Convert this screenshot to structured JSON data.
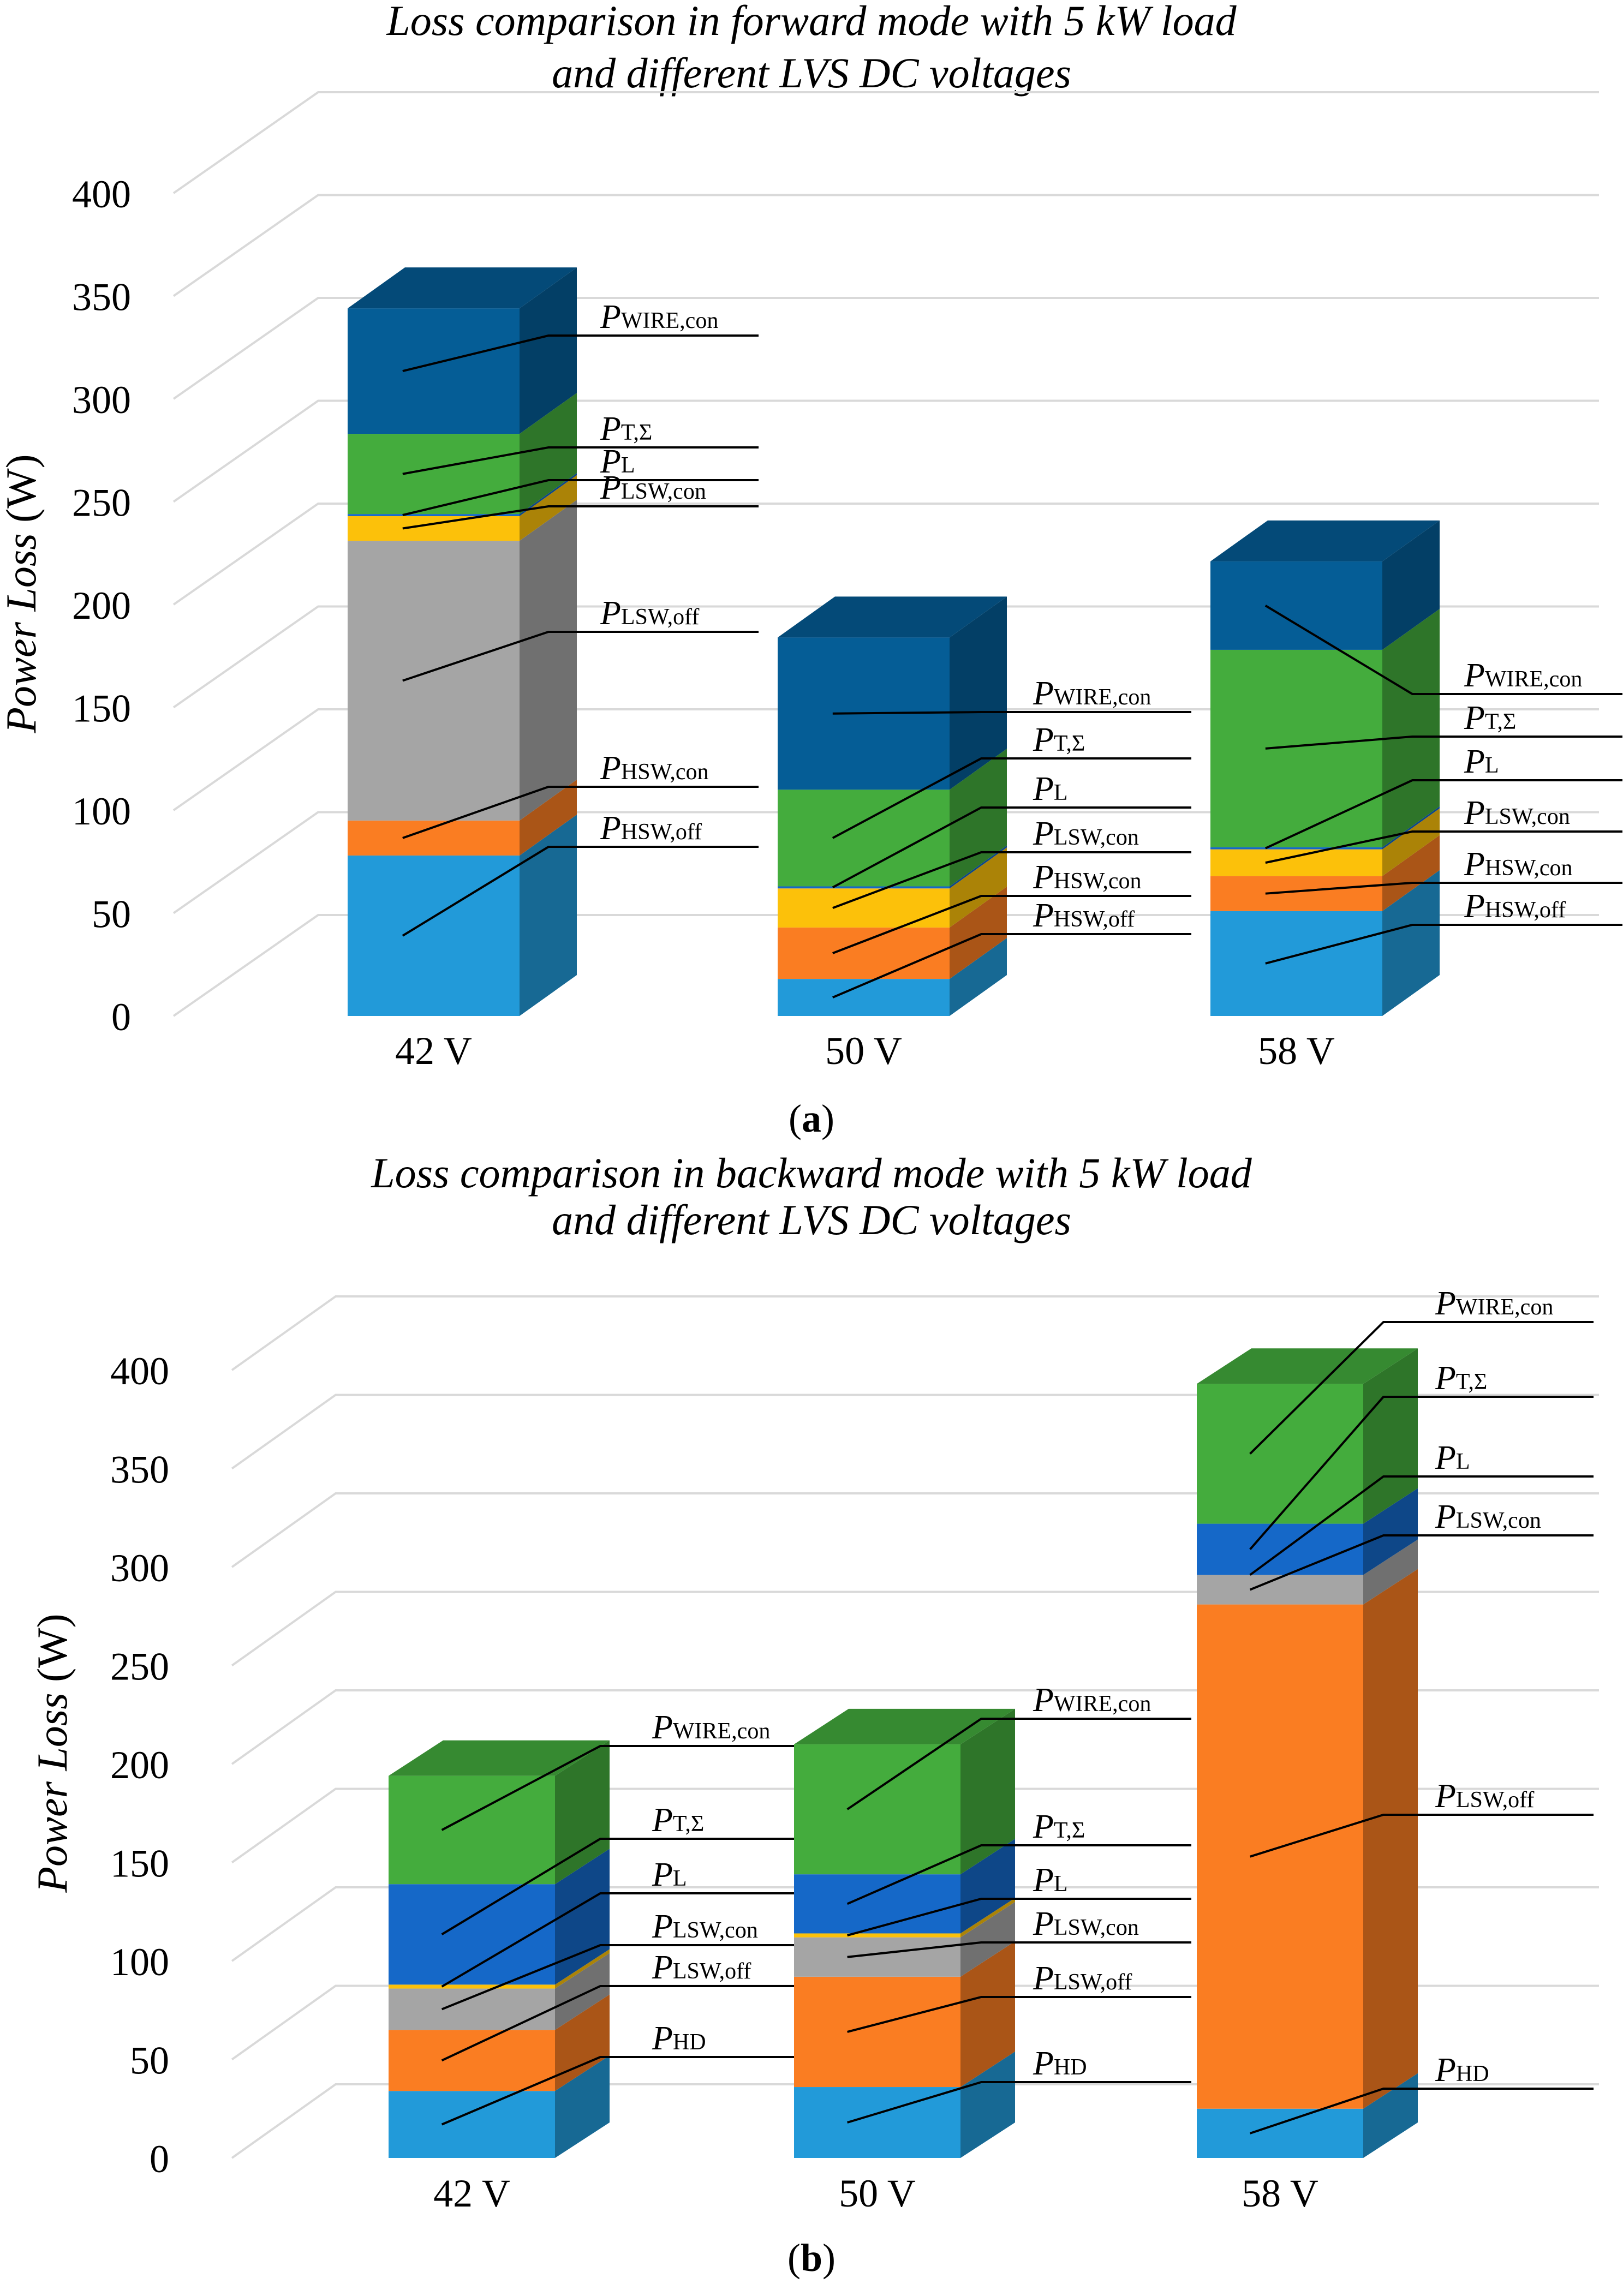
{
  "chart_data": [
    {
      "type": "bar",
      "stacked": true,
      "title_line1": "Loss comparison in forward mode with 5 kW load",
      "title_line2": "and different LVS DC voltages",
      "panel_label": "a",
      "ylabel_italic": "Power Loss",
      "ylabel_unit": "(W)",
      "ylim": [
        0,
        400
      ],
      "yticks": [
        "0",
        "50",
        "100",
        "150",
        "200",
        "250",
        "300",
        "350",
        "400"
      ],
      "grid": true,
      "categories": [
        "42 V",
        "50 V",
        "58 V"
      ],
      "series": [
        {
          "name": "HSW,off",
          "color": "#229ad9",
          "values": [
            78,
            18,
            51
          ]
        },
        {
          "name": "HSW,con",
          "color": "#fa7d22",
          "values": [
            17,
            25,
            17
          ]
        },
        {
          "name": "LSW,off",
          "color": "#a5a5a5",
          "values": [
            136,
            0,
            0
          ]
        },
        {
          "name": "LSW,con",
          "color": "#fcc10a",
          "values": [
            12,
            19,
            13
          ]
        },
        {
          "name": "L",
          "color": "#1568c8",
          "values": [
            1,
            1,
            1
          ]
        },
        {
          "name": "T,Σ",
          "color": "#44ac3d",
          "values": [
            39,
            47,
            96
          ]
        },
        {
          "name": "WIRE,con",
          "color": "#055d96",
          "values": [
            61,
            74,
            43
          ]
        }
      ],
      "labels": [
        [
          "HSW,off",
          "HSW,con",
          "LSW,off",
          "LSW,con",
          "L",
          "T,Σ",
          "WIRE,con"
        ],
        [
          "HSW,off",
          "HSW,con",
          "LSW,con",
          "L",
          "T,Σ",
          "WIRE,con"
        ],
        [
          "HSW,off",
          "HSW,con",
          "LSW,con",
          "L",
          "T,Σ",
          "WIRE,con"
        ]
      ]
    },
    {
      "type": "bar",
      "stacked": true,
      "title_line1": "Loss comparison in backward mode with 5 kW load",
      "title_line2": "and different LVS DC voltages",
      "panel_label": "b",
      "ylabel_italic": "Power Loss",
      "ylabel_unit": "(W)",
      "ylim": [
        0,
        400
      ],
      "yticks": [
        "0",
        "50",
        "100",
        "150",
        "200",
        "250",
        "300",
        "350",
        "400"
      ],
      "grid": true,
      "categories": [
        "42 V",
        "50 V",
        "58 V"
      ],
      "series": [
        {
          "name": "HD",
          "color": "#229ad9",
          "values": [
            34,
            36,
            25
          ]
        },
        {
          "name": "LSW,off",
          "color": "#fa7d22",
          "values": [
            31,
            56,
            256
          ]
        },
        {
          "name": "LSW,con",
          "color": "#a5a5a5",
          "values": [
            21,
            20,
            15
          ]
        },
        {
          "name": "L",
          "color": "#fcc10a",
          "values": [
            2,
            2,
            0
          ]
        },
        {
          "name": "T,Σ",
          "color": "#1568c8",
          "values": [
            51,
            30,
            26
          ]
        },
        {
          "name": "WIRE,con",
          "color": "#44ac3d",
          "values": [
            55,
            66,
            71
          ]
        }
      ],
      "labels": [
        [
          "HD",
          "LSW,off",
          "LSW,con",
          "L",
          "T,Σ",
          "WIRE,con"
        ],
        [
          "HD",
          "LSW,off",
          "LSW,con",
          "L",
          "T,Σ",
          "WIRE,con"
        ],
        [
          "HD",
          "LSW,off",
          "LSW,con",
          "L",
          "T,Σ",
          "WIRE,con"
        ]
      ]
    }
  ]
}
